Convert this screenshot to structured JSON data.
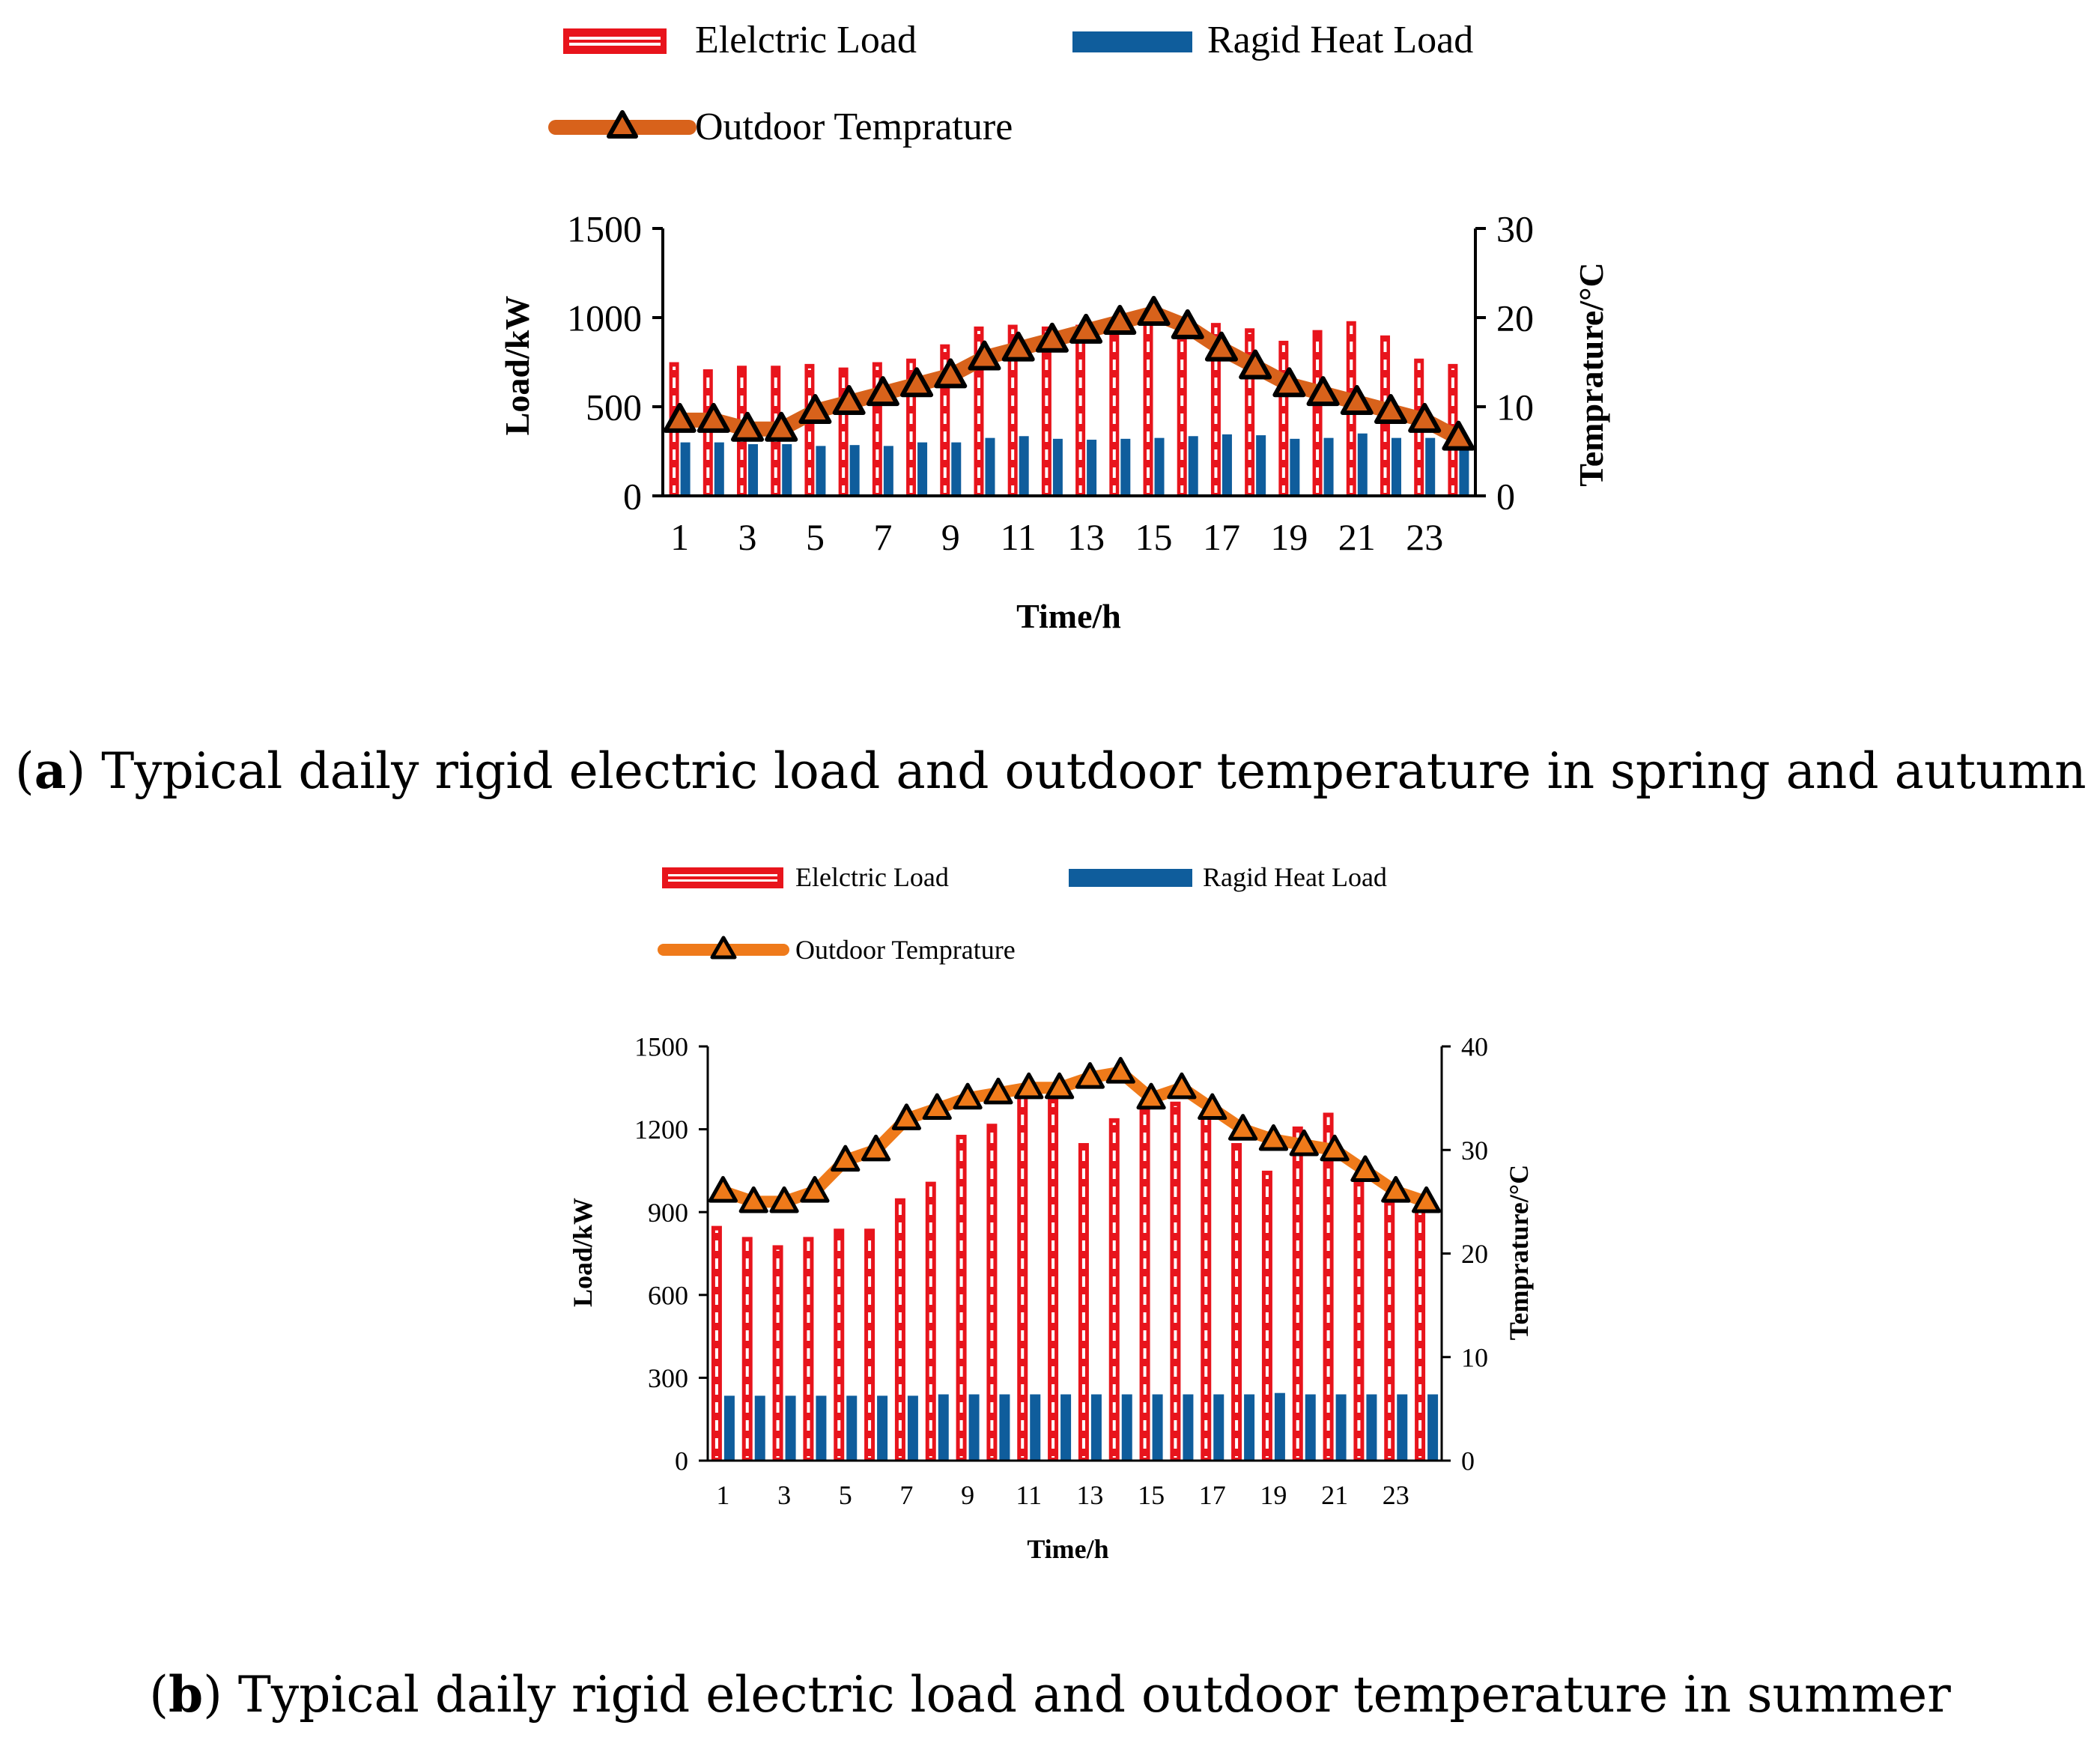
{
  "captions": [
    {
      "letter": "a",
      "text": "Typical daily rigid electric load and outdoor temperature in spring and autumn"
    },
    {
      "letter": "b",
      "text": "Typical daily rigid electric load and outdoor temperature in summer"
    }
  ],
  "chart_data": [
    {
      "type": "bar",
      "legend": {
        "electric": "Elelctric Load",
        "heat": "Ragid Heat Load",
        "temp": "Outdoor Temprature",
        "placement": "top"
      },
      "xlabel": "Time/h",
      "ylabel": "Load/kW",
      "y2label": "Temprature/°C",
      "ylim": [
        0,
        1500
      ],
      "yticks": [
        0,
        500,
        1000,
        1500
      ],
      "y2lim": [
        0,
        30
      ],
      "y2ticks": [
        0,
        10,
        20,
        30
      ],
      "xtick_labels": [
        "1",
        "3",
        "5",
        "7",
        "9",
        "11",
        "13",
        "15",
        "17",
        "19",
        "21",
        "23"
      ],
      "hours": [
        1,
        2,
        3,
        4,
        5,
        6,
        7,
        8,
        9,
        10,
        11,
        12,
        13,
        14,
        15,
        16,
        17,
        18,
        19,
        20,
        21,
        22,
        23,
        24
      ],
      "series": [
        {
          "name": "Elelctric Load",
          "axis": "left",
          "values": [
            750,
            710,
            730,
            730,
            740,
            720,
            750,
            770,
            850,
            950,
            960,
            950,
            960,
            980,
            1020,
            980,
            970,
            940,
            870,
            930,
            980,
            900,
            770,
            740
          ]
        },
        {
          "name": "Ragid Heat Load",
          "axis": "left",
          "values": [
            300,
            300,
            290,
            290,
            280,
            285,
            280,
            300,
            300,
            325,
            335,
            320,
            315,
            320,
            325,
            335,
            345,
            340,
            320,
            325,
            350,
            325,
            325,
            300
          ]
        },
        {
          "name": "Outdoor Temprature",
          "axis": "right",
          "type": "line",
          "values": [
            8.5,
            8.5,
            7.5,
            7.5,
            9.5,
            10.5,
            11.5,
            12.5,
            13.5,
            15.5,
            16.5,
            17.5,
            18.5,
            19.5,
            20.5,
            19,
            16.5,
            14.5,
            12.5,
            11.5,
            10.5,
            9.5,
            8.5,
            6.5
          ]
        }
      ]
    },
    {
      "type": "bar",
      "legend": {
        "electric": "Elelctric Load",
        "heat": "Ragid Heat Load",
        "temp": "Outdoor Temprature",
        "placement": "top"
      },
      "xlabel": "Time/h",
      "ylabel": "Load/kW",
      "y2label": "Temprature/°C",
      "ylim": [
        0,
        1500
      ],
      "yticks": [
        0,
        300,
        600,
        900,
        1200,
        1500
      ],
      "y2lim": [
        0,
        40
      ],
      "y2ticks": [
        0,
        10,
        20,
        30,
        40
      ],
      "xtick_labels": [
        "1",
        "3",
        "5",
        "7",
        "9",
        "11",
        "13",
        "15",
        "17",
        "19",
        "21",
        "23"
      ],
      "hours": [
        1,
        2,
        3,
        4,
        5,
        6,
        7,
        8,
        9,
        10,
        11,
        12,
        13,
        14,
        15,
        16,
        17,
        18,
        19,
        20,
        21,
        22,
        23,
        24
      ],
      "series": [
        {
          "name": "Elelctric Load",
          "axis": "left",
          "values": [
            850,
            810,
            780,
            810,
            840,
            840,
            950,
            1010,
            1180,
            1220,
            1330,
            1310,
            1150,
            1240,
            1280,
            1300,
            1260,
            1150,
            1050,
            1210,
            1260,
            1010,
            940,
            920
          ]
        },
        {
          "name": "Ragid Heat Load",
          "axis": "left",
          "values": [
            235,
            235,
            235,
            235,
            235,
            235,
            235,
            240,
            240,
            240,
            240,
            240,
            240,
            240,
            240,
            240,
            240,
            240,
            245,
            240,
            240,
            240,
            240,
            240
          ]
        },
        {
          "name": "Outdoor Temprature",
          "axis": "right",
          "type": "line",
          "values": [
            26,
            25,
            25,
            26,
            29,
            30,
            33,
            34,
            35,
            35.5,
            36,
            36,
            37,
            37.5,
            35,
            36,
            34,
            32,
            31,
            30.5,
            30,
            28,
            26,
            25
          ]
        }
      ]
    }
  ]
}
